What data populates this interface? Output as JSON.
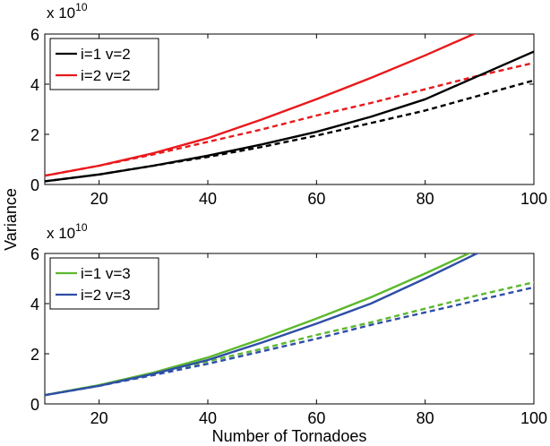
{
  "chart_data": [
    {
      "type": "line",
      "xlabel": "",
      "ylabel": "",
      "xlim": [
        10,
        100
      ],
      "ylim": [
        0,
        6
      ],
      "xticks": [
        20,
        40,
        60,
        80,
        100
      ],
      "yticks": [
        0,
        2,
        4,
        6
      ],
      "y_scale_label": {
        "base": "x 10",
        "exponent": "10"
      },
      "grid": false,
      "legend_position": "top-left",
      "x": [
        10,
        20,
        30,
        40,
        50,
        60,
        70,
        80,
        90,
        100
      ],
      "series": [
        {
          "name": "i=1 v=2",
          "color": "#000000",
          "style": "solid",
          "in_legend": true,
          "values": [
            0.13,
            0.4,
            0.75,
            1.15,
            1.6,
            2.1,
            2.7,
            3.4,
            4.35,
            5.3
          ]
        },
        {
          "name": "i=2 v=2",
          "color": "#e8191c",
          "style": "solid",
          "in_legend": true,
          "values": [
            0.35,
            0.75,
            1.25,
            1.85,
            2.6,
            3.4,
            4.25,
            5.15,
            6.1,
            7.1
          ]
        },
        {
          "name": "",
          "color": "#e8191c",
          "style": "dashed",
          "in_legend": false,
          "values": [
            0.35,
            0.75,
            1.2,
            1.7,
            2.2,
            2.75,
            3.25,
            3.8,
            4.35,
            4.85
          ]
        },
        {
          "name": "",
          "color": "#000000",
          "style": "dashed",
          "in_legend": false,
          "values": [
            0.13,
            0.4,
            0.75,
            1.1,
            1.5,
            1.95,
            2.45,
            2.95,
            3.55,
            4.15
          ]
        }
      ]
    },
    {
      "type": "line",
      "xlabel": "Number of Tornadoes",
      "ylabel": "",
      "xlim": [
        10,
        100
      ],
      "ylim": [
        0,
        6
      ],
      "xticks": [
        20,
        40,
        60,
        80,
        100
      ],
      "yticks": [
        0,
        2,
        4,
        6
      ],
      "y_scale_label": {
        "base": "x 10",
        "exponent": "10"
      },
      "grid": false,
      "legend_position": "top-left",
      "x": [
        10,
        20,
        30,
        40,
        50,
        60,
        70,
        80,
        90,
        100
      ],
      "series": [
        {
          "name": "i=1 v=3",
          "color": "#5cb82e",
          "style": "solid",
          "in_legend": true,
          "values": [
            0.35,
            0.75,
            1.25,
            1.85,
            2.6,
            3.4,
            4.25,
            5.2,
            6.2,
            7.2
          ]
        },
        {
          "name": "i=2 v=3",
          "color": "#2e4ea6",
          "style": "solid",
          "in_legend": true,
          "values": [
            0.35,
            0.72,
            1.2,
            1.75,
            2.45,
            3.2,
            4.0,
            5.0,
            6.05,
            7.1
          ]
        },
        {
          "name": "",
          "color": "#5cb82e",
          "style": "dashed",
          "in_legend": false,
          "values": [
            0.35,
            0.75,
            1.2,
            1.7,
            2.2,
            2.75,
            3.25,
            3.8,
            4.35,
            4.85
          ]
        },
        {
          "name": "",
          "color": "#2e4ea6",
          "style": "dashed",
          "in_legend": false,
          "values": [
            0.35,
            0.72,
            1.15,
            1.6,
            2.1,
            2.6,
            3.15,
            3.65,
            4.15,
            4.65
          ]
        }
      ]
    }
  ],
  "shared_ylabel": "Variance"
}
